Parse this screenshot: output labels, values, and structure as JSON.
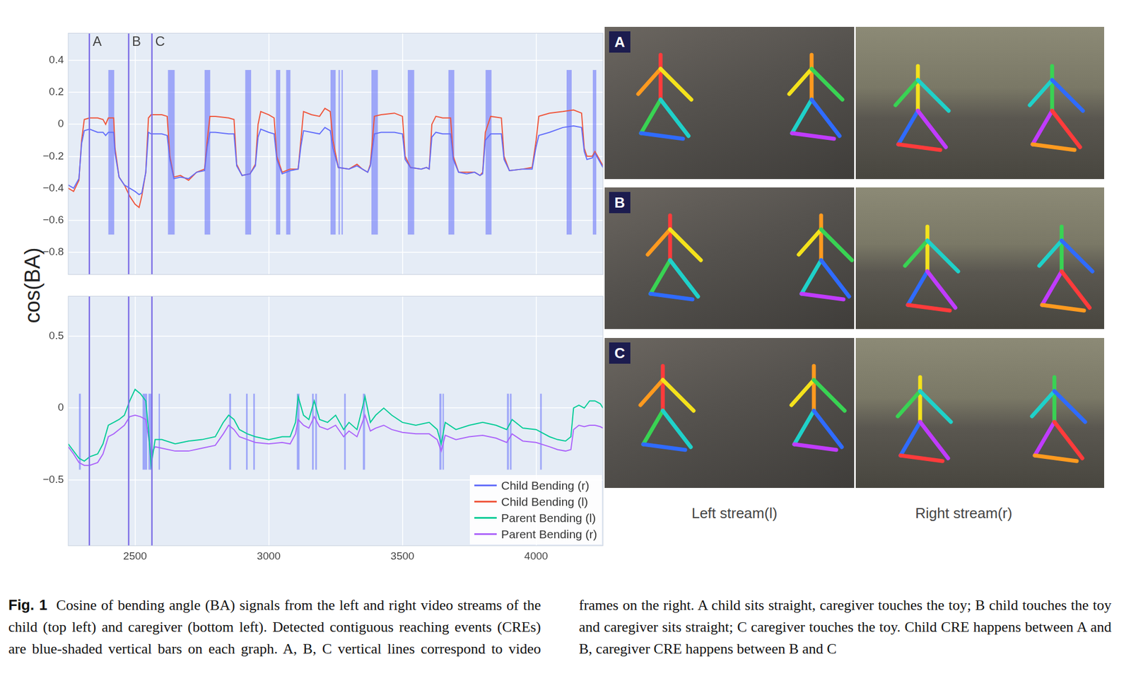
{
  "figure": {
    "y_title": "cos(BA)",
    "events": [
      {
        "label": "A",
        "x": 2329
      },
      {
        "label": "B",
        "x": 2476
      },
      {
        "label": "C",
        "x": 2563
      }
    ],
    "panels": [
      "A",
      "B",
      "C"
    ],
    "stream_labels": [
      "Left stream(l)",
      "Right stream(r)"
    ],
    "caption_label": "Fig. 1",
    "caption": "Cosine of bending angle (BA) signals from the left and right video streams of the child (top left) and caregiver (bottom left). Detected contiguous reaching events (CREs) are blue-shaded vertical bars on each graph. A, B, C vertical lines correspond to video frames on the right. A child sits straight, caregiver touches the toy; B child touches the toy and caregiver sits straight; C caregiver touches the toy. Child CRE happens between A and B, caregiver CRE happens between B and C"
  },
  "chart_data": [
    {
      "type": "line",
      "x": [
        2250,
        2270,
        2290,
        2300,
        2310,
        2330,
        2360,
        2380,
        2390,
        2400,
        2420,
        2425,
        2440,
        2460,
        2480,
        2500,
        2515,
        2525,
        2540,
        2550,
        2560,
        2600,
        2620,
        2630,
        2645,
        2670,
        2700,
        2730,
        2760,
        2770,
        2780,
        2800,
        2850,
        2870,
        2880,
        2900,
        2930,
        2950,
        2960,
        2970,
        3000,
        3020,
        3030,
        3050,
        3080,
        3110,
        3120,
        3130,
        3160,
        3190,
        3210,
        3230,
        3240,
        3260,
        3300,
        3330,
        3350,
        3370,
        3380,
        3395,
        3420,
        3470,
        3500,
        3510,
        3530,
        3570,
        3590,
        3600,
        3610,
        3625,
        3650,
        3680,
        3690,
        3710,
        3740,
        3770,
        3790,
        3800,
        3810,
        3830,
        3870,
        3880,
        3900,
        3950,
        3985,
        4000,
        4010,
        4050,
        4100,
        4140,
        4170,
        4180,
        4190,
        4210,
        4220,
        4230,
        4250
      ],
      "series": [
        {
          "name": "Child Bending (r)",
          "color": "#636efa",
          "values": [
            -0.38,
            -0.4,
            -0.34,
            -0.12,
            -0.04,
            -0.03,
            -0.05,
            -0.05,
            -0.07,
            -0.05,
            -0.05,
            -0.18,
            -0.33,
            -0.38,
            -0.4,
            -0.42,
            -0.44,
            -0.43,
            -0.3,
            -0.05,
            -0.06,
            -0.06,
            -0.07,
            -0.22,
            -0.34,
            -0.33,
            -0.34,
            -0.3,
            -0.29,
            -0.14,
            -0.05,
            -0.05,
            -0.06,
            -0.06,
            -0.26,
            -0.32,
            -0.31,
            -0.26,
            -0.08,
            -0.03,
            -0.05,
            -0.06,
            -0.22,
            -0.31,
            -0.29,
            -0.28,
            -0.14,
            -0.04,
            -0.05,
            -0.06,
            -0.02,
            -0.04,
            -0.15,
            -0.27,
            -0.28,
            -0.26,
            -0.28,
            -0.3,
            -0.26,
            -0.06,
            -0.05,
            -0.05,
            -0.06,
            -0.22,
            -0.27,
            -0.28,
            -0.27,
            -0.28,
            -0.08,
            -0.05,
            -0.06,
            -0.06,
            -0.22,
            -0.3,
            -0.31,
            -0.3,
            -0.32,
            -0.31,
            -0.1,
            -0.06,
            -0.06,
            -0.22,
            -0.29,
            -0.28,
            -0.28,
            -0.14,
            -0.07,
            -0.05,
            -0.02,
            -0.01,
            -0.02,
            -0.17,
            -0.22,
            -0.21,
            -0.18,
            -0.21,
            -0.27
          ]
        },
        {
          "name": "Child Bending (l)",
          "color": "#ef553b",
          "values": [
            -0.4,
            -0.42,
            -0.35,
            -0.1,
            0.03,
            0.04,
            0.04,
            0.03,
            0.0,
            0.04,
            0.04,
            -0.15,
            -0.33,
            -0.38,
            -0.45,
            -0.5,
            -0.52,
            -0.45,
            -0.3,
            0.04,
            0.06,
            0.06,
            0.05,
            -0.2,
            -0.33,
            -0.32,
            -0.35,
            -0.3,
            -0.28,
            -0.1,
            0.05,
            0.05,
            0.04,
            0.03,
            -0.25,
            -0.32,
            -0.31,
            -0.25,
            0.0,
            0.08,
            0.06,
            0.04,
            -0.2,
            -0.3,
            -0.28,
            -0.28,
            -0.1,
            0.08,
            0.06,
            0.05,
            0.1,
            0.08,
            -0.1,
            -0.27,
            -0.28,
            -0.25,
            -0.28,
            -0.3,
            -0.25,
            0.05,
            0.06,
            0.07,
            0.05,
            -0.2,
            -0.27,
            -0.28,
            -0.27,
            -0.28,
            0.0,
            0.05,
            0.04,
            0.04,
            -0.2,
            -0.3,
            -0.3,
            -0.3,
            -0.32,
            -0.3,
            -0.05,
            0.05,
            0.04,
            -0.2,
            -0.29,
            -0.28,
            -0.27,
            -0.1,
            0.05,
            0.07,
            0.08,
            0.09,
            0.07,
            -0.15,
            -0.2,
            -0.2,
            -0.17,
            -0.2,
            -0.26
          ]
        }
      ],
      "xlim": [
        2250,
        4250
      ],
      "xticks": [
        2500,
        3000,
        3500,
        4000
      ],
      "ylim": [
        -0.94,
        0.57
      ],
      "yticks": [
        {
          "value": -0.8,
          "label": "−0.8"
        },
        {
          "value": -0.6,
          "label": "−0.6"
        },
        {
          "value": -0.4,
          "label": "−0.4"
        },
        {
          "value": -0.2,
          "label": "−0.2"
        },
        0,
        0.2,
        0.4
      ],
      "grid": true,
      "tick_labels": "y",
      "cre": {
        "color": "#636efa",
        "ylim": [
          -0.69,
          0.34
        ],
        "intervals": [
          [
            2400,
            2422
          ],
          [
            2623,
            2648
          ],
          [
            2760,
            2781
          ],
          [
            2912,
            2934
          ],
          [
            3027,
            3043
          ],
          [
            3065,
            3081
          ],
          [
            3231,
            3250
          ],
          [
            3261,
            3266
          ],
          [
            3272,
            3277
          ],
          [
            3384,
            3408
          ],
          [
            3520,
            3544
          ],
          [
            3672,
            3694
          ],
          [
            3811,
            3833
          ],
          [
            4114,
            4133
          ],
          [
            4212,
            4225
          ]
        ]
      }
    },
    {
      "type": "line",
      "x": [
        2250,
        2270,
        2290,
        2310,
        2330,
        2360,
        2380,
        2400,
        2420,
        2440,
        2460,
        2480,
        2500,
        2520,
        2540,
        2550,
        2560,
        2575,
        2600,
        2650,
        2700,
        2750,
        2800,
        2830,
        2850,
        2870,
        2890,
        2920,
        2950,
        3000,
        3050,
        3080,
        3100,
        3110,
        3130,
        3150,
        3170,
        3190,
        3220,
        3250,
        3280,
        3300,
        3330,
        3350,
        3360,
        3380,
        3400,
        3430,
        3460,
        3500,
        3550,
        3600,
        3630,
        3645,
        3660,
        3700,
        3750,
        3800,
        3850,
        3890,
        3910,
        3950,
        4000,
        4050,
        4080,
        4110,
        4130,
        4140,
        4160,
        4180,
        4200,
        4220,
        4240,
        4250
      ],
      "series": [
        {
          "name": "Parent Bending (l)",
          "color": "#00cc96",
          "values": [
            -0.25,
            -0.3,
            -0.35,
            -0.37,
            -0.34,
            -0.32,
            -0.25,
            -0.12,
            -0.1,
            -0.08,
            -0.05,
            0.05,
            0.13,
            0.1,
            0.05,
            -0.15,
            -0.4,
            -0.22,
            -0.22,
            -0.25,
            -0.23,
            -0.22,
            -0.2,
            -0.1,
            -0.05,
            -0.08,
            -0.15,
            -0.18,
            -0.2,
            -0.22,
            -0.2,
            -0.2,
            -0.1,
            0.08,
            -0.05,
            -0.08,
            0.05,
            -0.08,
            -0.1,
            -0.05,
            -0.15,
            -0.1,
            -0.15,
            0.0,
            0.08,
            -0.1,
            -0.05,
            0.0,
            -0.05,
            -0.1,
            -0.12,
            -0.1,
            -0.15,
            -0.25,
            -0.1,
            -0.15,
            -0.12,
            -0.1,
            -0.12,
            -0.15,
            -0.08,
            -0.14,
            -0.15,
            -0.2,
            -0.22,
            -0.23,
            -0.2,
            0.0,
            0.02,
            0.0,
            0.05,
            0.05,
            0.03,
            0.0
          ]
        },
        {
          "name": "Parent Bending (r)",
          "color": "#ab63fa",
          "values": [
            -0.27,
            -0.32,
            -0.38,
            -0.4,
            -0.4,
            -0.38,
            -0.32,
            -0.2,
            -0.18,
            -0.15,
            -0.12,
            -0.06,
            -0.05,
            -0.06,
            -0.08,
            -0.2,
            -0.32,
            -0.27,
            -0.28,
            -0.3,
            -0.3,
            -0.28,
            -0.26,
            -0.18,
            -0.12,
            -0.15,
            -0.2,
            -0.22,
            -0.24,
            -0.25,
            -0.24,
            -0.25,
            -0.18,
            -0.08,
            -0.12,
            -0.14,
            -0.06,
            -0.13,
            -0.15,
            -0.12,
            -0.2,
            -0.16,
            -0.2,
            -0.1,
            -0.05,
            -0.16,
            -0.14,
            -0.12,
            -0.15,
            -0.17,
            -0.18,
            -0.18,
            -0.22,
            -0.3,
            -0.19,
            -0.22,
            -0.2,
            -0.19,
            -0.21,
            -0.24,
            -0.18,
            -0.23,
            -0.24,
            -0.27,
            -0.29,
            -0.3,
            -0.29,
            -0.15,
            -0.12,
            -0.13,
            -0.12,
            -0.12,
            -0.13,
            -0.14
          ]
        }
      ],
      "xlim": [
        2250,
        4250
      ],
      "xticks": [
        2500,
        3000,
        3500,
        4000
      ],
      "ylim": [
        -0.96,
        0.78
      ],
      "yticks": [
        {
          "value": -0.5,
          "label": "−0.5"
        },
        0,
        0.5
      ],
      "grid": true,
      "legend": "lower right",
      "cre": {
        "color": "#636efa",
        "ylim": [
          -0.43,
          0.1
        ],
        "intervals": [
          [
            2290,
            2297
          ],
          [
            2528,
            2545
          ],
          [
            2550,
            2563
          ],
          [
            2588,
            2593
          ],
          [
            2852,
            2859
          ],
          [
            2915,
            2921
          ],
          [
            2942,
            2948
          ],
          [
            3105,
            3115
          ],
          [
            3162,
            3168
          ],
          [
            3174,
            3180
          ],
          [
            3282,
            3288
          ],
          [
            3352,
            3360
          ],
          [
            3638,
            3646
          ],
          [
            3650,
            3655
          ],
          [
            3891,
            3898
          ],
          [
            3902,
            3908
          ],
          [
            4015,
            4021
          ]
        ]
      }
    }
  ]
}
